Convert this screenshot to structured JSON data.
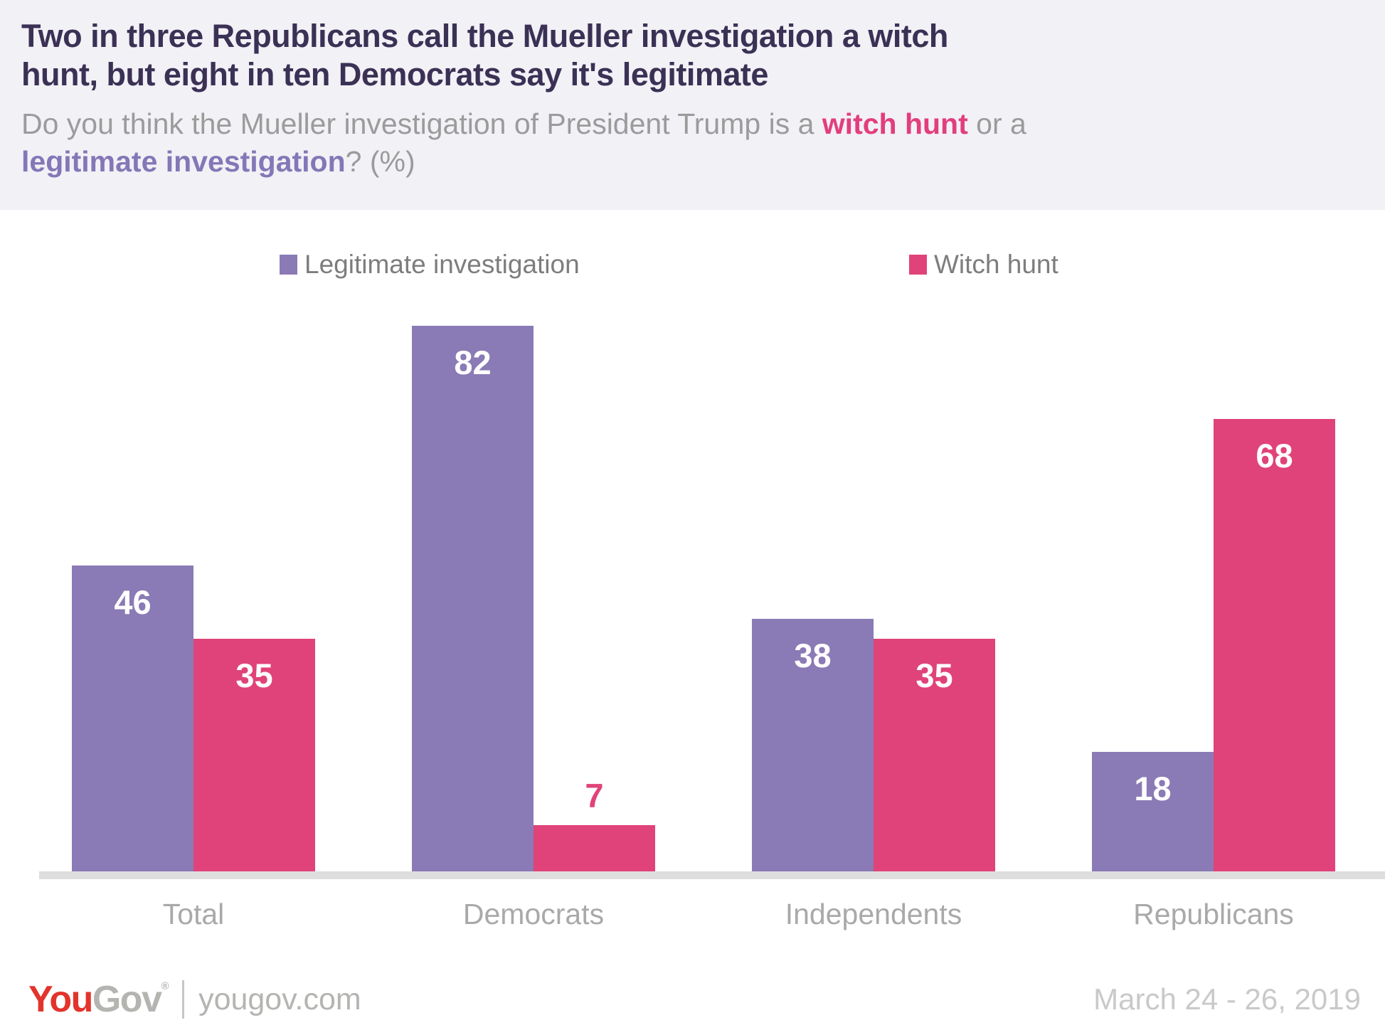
{
  "header": {
    "title_line1": "Two in three Republicans call the Mueller investigation a witch",
    "title_line2": "hunt, but eight in ten Democrats say it's legitimate",
    "subtitle": {
      "prefix": "Do you think the Mueller investigation of President Trump is a ",
      "witch_hunt": "witch hunt",
      "middle": " or a",
      "legitimate": "legitimate investigation",
      "suffix": "? (%)"
    }
  },
  "chart_data": {
    "type": "bar",
    "categories": [
      "Total",
      "Democrats",
      "Independents",
      "Republicans"
    ],
    "series": [
      {
        "name": "Legitimate investigation",
        "color": "#8a7ab5",
        "values": [
          46,
          82,
          38,
          18
        ]
      },
      {
        "name": "Witch hunt",
        "color": "#e04379",
        "values": [
          35,
          7,
          35,
          68
        ]
      }
    ],
    "ylim": [
      0,
      100
    ],
    "unit": "%",
    "grid": false,
    "legend_position": "top",
    "value_labels": true,
    "axis_line_color": "#dedede"
  },
  "colors": {
    "header_background": "#f2f1f6",
    "title": "#3b3155",
    "subtitle": "#9b9b9b",
    "witch_hunt_accent": "#e23e7d",
    "legitimate_accent": "#8477b7",
    "legend_text": "#7d7d7d",
    "category_text": "#a9a9a9",
    "bar_label_inside": "#ffffff"
  },
  "footer": {
    "logo_you": "You",
    "logo_gov": "Gov",
    "logo_registered": "®",
    "site": "yougov.com",
    "date": "March 24 - 26, 2019"
  }
}
